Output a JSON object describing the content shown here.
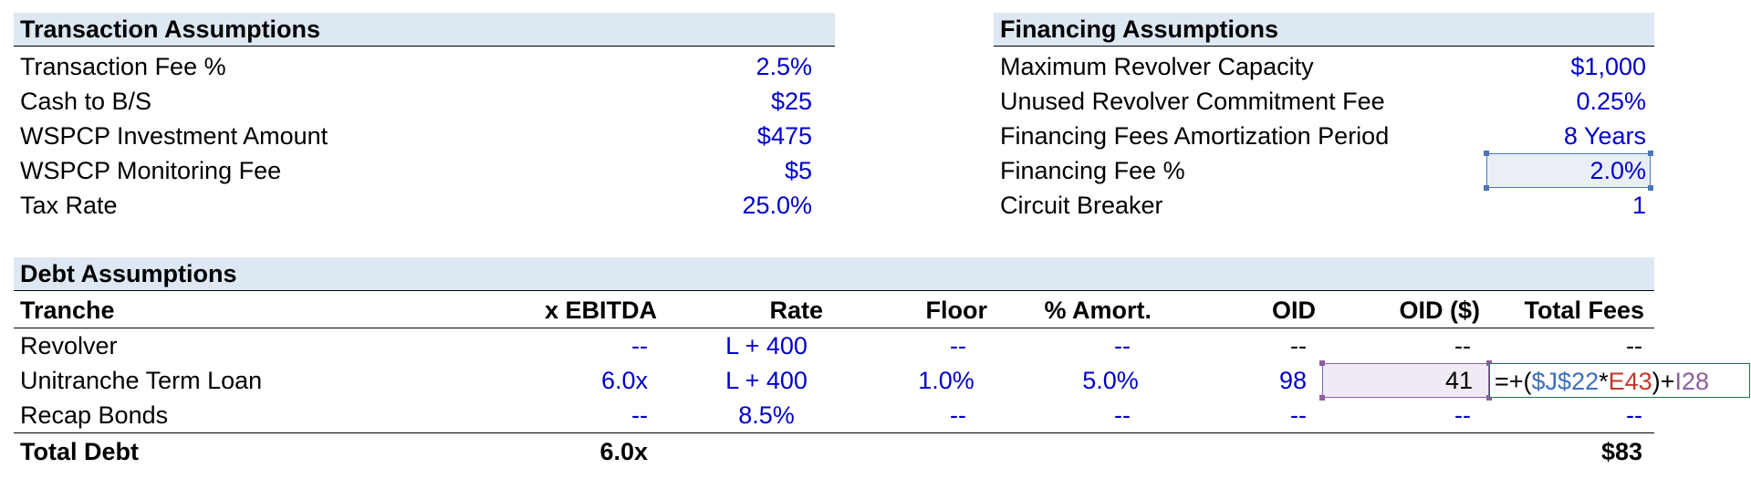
{
  "transaction": {
    "title": "Transaction Assumptions",
    "rows": [
      {
        "label": "Transaction Fee %",
        "value": "2.5%"
      },
      {
        "label": "Cash to B/S",
        "value": "$25"
      },
      {
        "label": "WSPCP Investment Amount",
        "value": "$475"
      },
      {
        "label": "WSPCP Monitoring Fee",
        "value": "$5"
      },
      {
        "label": "Tax Rate",
        "value": "25.0%"
      }
    ]
  },
  "financing": {
    "title": "Financing Assumptions",
    "rows": [
      {
        "label": "Maximum Revolver Capacity",
        "value": "$1,000"
      },
      {
        "label": "Unused Revolver Commitment Fee",
        "value": "0.25%"
      },
      {
        "label": "Financing Fees Amortization Period",
        "value": "8 Years"
      },
      {
        "label": "Financing Fee %",
        "value": "2.0%"
      },
      {
        "label": "Circuit Breaker",
        "value": "1"
      }
    ]
  },
  "debt": {
    "title": "Debt Assumptions",
    "headers": {
      "tranche": "Tranche",
      "ebitda": "x EBITDA",
      "rate": "Rate",
      "floor": "Floor",
      "amort": "% Amort.",
      "oid": "OID",
      "oid_dollar": "OID ($)",
      "total_fees": "Total Fees"
    },
    "rows": [
      {
        "tranche": "Revolver",
        "ebitda": "--",
        "rate": "L + 400",
        "floor": "--",
        "amort": "--",
        "oid": "--",
        "oid_dollar": "--",
        "total_fees": "--"
      },
      {
        "tranche": "Unitranche Term Loan",
        "ebitda": "6.0x",
        "rate": "L + 400",
        "floor": "1.0%",
        "amort": "5.0%",
        "oid": "98",
        "oid_dollar": "41"
      },
      {
        "tranche": "Recap Bonds",
        "ebitda": "--",
        "rate": "8.5%",
        "floor": "--",
        "amort": "--",
        "oid": "--",
        "oid_dollar": "--",
        "total_fees": "--"
      }
    ],
    "total": {
      "label": "Total Debt",
      "ebitda": "6.0x",
      "total_fees": "$83"
    },
    "formula": {
      "prefix": "=+(",
      "ref1": "$J$22",
      "op": "*",
      "ref2": "E43",
      "mid": ")+",
      "ref3": "I28"
    }
  }
}
